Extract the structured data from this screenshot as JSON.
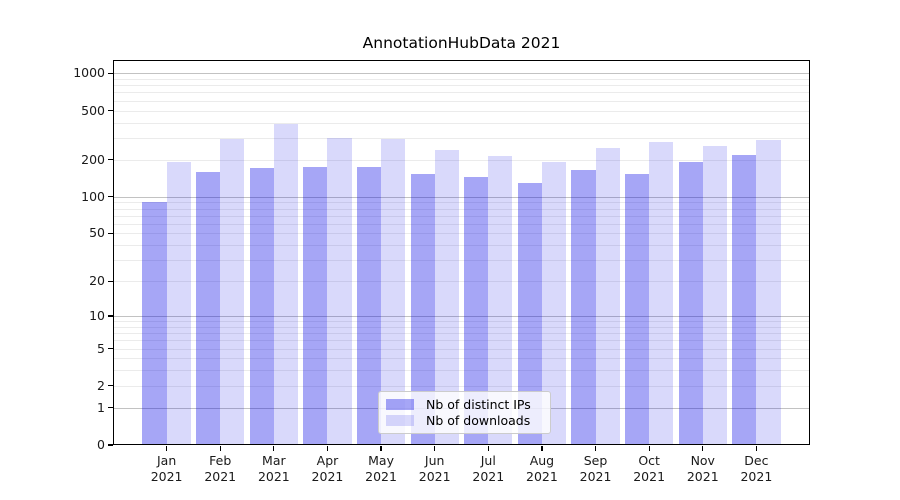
{
  "chart_data": {
    "type": "bar",
    "title": "AnnotationHubData 2021",
    "categories": [
      "Jan 2021",
      "Feb 2021",
      "Mar 2021",
      "Apr 2021",
      "May 2021",
      "Jun 2021",
      "Jul 2021",
      "Aug 2021",
      "Sep 2021",
      "Oct 2021",
      "Nov 2021",
      "Dec 2021"
    ],
    "series": [
      {
        "name": "Nb of distinct IPs",
        "color": "rgba(0,0,230,0.35)",
        "color_hex_on_white": "#a6a6f1",
        "values": [
          90,
          160,
          172,
          176,
          173,
          152,
          144,
          130,
          166,
          152,
          191,
          218
        ]
      },
      {
        "name": "Nb of downloads",
        "color": "rgba(0,0,230,0.15)",
        "color_hex_on_white": "#dcdcfa",
        "values": [
          193,
          296,
          392,
          299,
          292,
          238,
          215,
          190,
          249,
          280,
          256,
          288
        ]
      }
    ],
    "yscale": "log1p",
    "yticks": [
      0,
      1,
      2,
      5,
      10,
      20,
      50,
      100,
      200,
      500,
      1000
    ],
    "ylim": [
      0,
      1250
    ],
    "xlabel": "",
    "ylabel": "",
    "grid": {
      "horizontal": true,
      "major_color": "#c2c2c2",
      "minor_color": "#ebebeb"
    },
    "axis_color": "#000000",
    "text_color": "#1a1a1a",
    "legend_position": "lower center"
  }
}
